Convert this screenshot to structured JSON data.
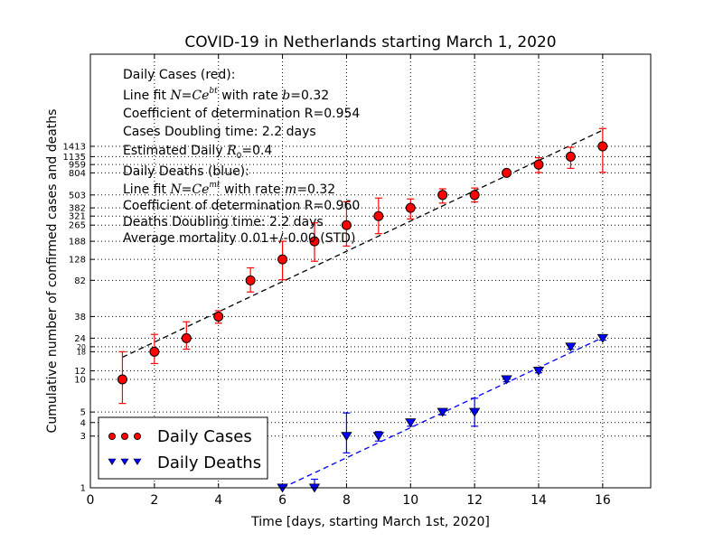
{
  "chart_data": {
    "type": "scatter",
    "title": "COVID-19 in Netherlands starting March 1, 2020",
    "xlabel": "Time [days, starting March 1st, 2020]",
    "ylabel": "Cumulative number of confirmed cases and deaths",
    "xlim": [
      0,
      17.5
    ],
    "ylim": [
      1,
      10000
    ],
    "yscale": "log",
    "grid": true,
    "legend_position": "lower-left",
    "x_ticks": [
      "0",
      "2",
      "4",
      "6",
      "8",
      "10",
      "12",
      "14",
      "16"
    ],
    "x_tick_values": [
      0,
      2,
      4,
      6,
      8,
      10,
      12,
      14,
      16
    ],
    "y_tick_values": [
      1,
      3,
      4,
      5,
      10,
      12,
      18,
      20,
      24,
      38,
      82,
      128,
      188,
      265,
      321,
      382,
      503,
      804,
      959,
      1135,
      1413
    ],
    "y_ticks_large": [
      "1",
      "3",
      "4",
      "5",
      "10",
      "12",
      "24",
      "38",
      "82",
      "128",
      "188",
      "265",
      "321",
      "382",
      "503",
      "804",
      "959",
      "1135",
      "1413"
    ],
    "y_ticks_small": [
      "18",
      "20"
    ],
    "series": [
      {
        "name": "Daily Cases",
        "color": "#ff0000",
        "marker": "circle",
        "x": [
          1,
          2,
          3,
          4,
          5,
          6,
          7,
          8,
          9,
          10,
          11,
          12,
          13,
          14,
          15,
          16
        ],
        "y": [
          10,
          18,
          24,
          38,
          82,
          128,
          188,
          265,
          321,
          382,
          503,
          503,
          804,
          959,
          1135,
          1413
        ],
        "err_low": [
          4,
          4,
          5,
          5,
          18,
          45,
          65,
          95,
          100,
          80,
          80,
          70,
          40,
          150,
          250,
          600
        ],
        "err_high": [
          8,
          8,
          10,
          5,
          25,
          60,
          90,
          170,
          150,
          80,
          70,
          80,
          40,
          150,
          250,
          650
        ],
        "fit_line": {
          "color": "#000000",
          "x": [
            1,
            16
          ],
          "y": [
            16,
            1990
          ]
        }
      },
      {
        "name": "Daily Deaths",
        "color": "#0000ff",
        "marker": "triangle-down",
        "x": [
          6,
          7,
          8,
          9,
          10,
          11,
          12,
          13,
          14,
          15,
          16
        ],
        "y": [
          1,
          1,
          3,
          3,
          4,
          5,
          5,
          10,
          12,
          20,
          24
        ],
        "err_low": [
          0,
          0.2,
          0.9,
          0.3,
          0.3,
          0.3,
          1.3,
          0.5,
          0.5,
          1,
          1
        ],
        "err_high": [
          0,
          0.2,
          1.9,
          0.3,
          0.3,
          0.3,
          1.7,
          0.5,
          0.5,
          1,
          1
        ],
        "fit_line": {
          "color": "#0000ff",
          "x": [
            6,
            16
          ],
          "y": [
            1,
            24.3
          ]
        }
      }
    ],
    "annotations": {
      "cases": {
        "heading": "Daily Cases (red):",
        "fit_prefix": "Line fit ",
        "fit_formula": "N=Ce",
        "fit_exp": "bt",
        "fit_mid": " with rate ",
        "fit_param": "b",
        "fit_value": "=0.32",
        "r2": "Coefficient of determination R=0.954",
        "doubling": "Cases Doubling time: 2.2 days",
        "r0_prefix": "Estimated Daily ",
        "r0_symbol": "R",
        "r0_sub": "0",
        "r0_value": "=0.4"
      },
      "deaths": {
        "heading": "Daily Deaths (blue):",
        "fit_prefix": "Line fit ",
        "fit_formula": "N=Ce",
        "fit_exp": "mt",
        "fit_mid": " with rate ",
        "fit_param": "m",
        "fit_value": "=0.32",
        "r2": "Coefficient of determination R=0.960",
        "doubling": "Deaths Doubling time: 2.2 days",
        "mortality": "Average mortality 0.01+/-0.00 (STD)"
      }
    }
  }
}
